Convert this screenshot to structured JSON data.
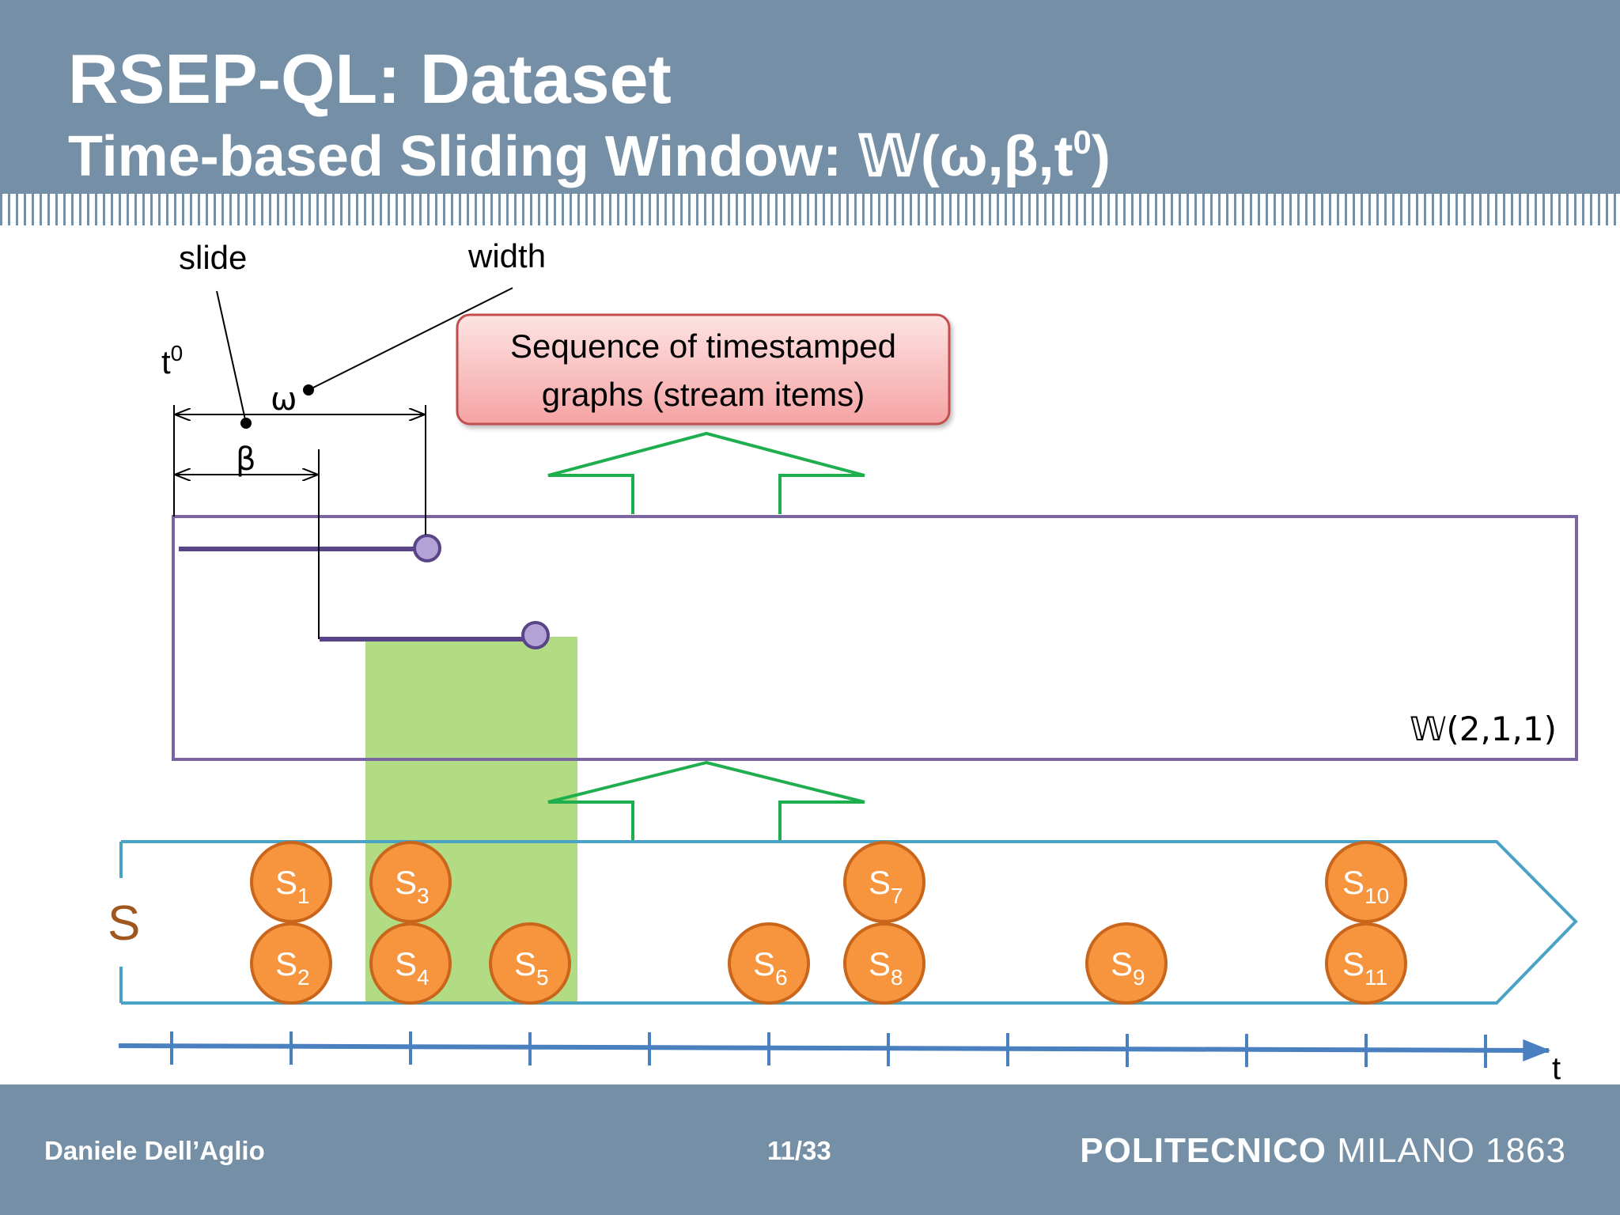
{
  "header": {
    "title": "RSEP-QL: Dataset",
    "subtitle_text": "Time-based Sliding Window:  𝕎(ω,β,t",
    "subtitle_sup": "0",
    "subtitle_close": ")"
  },
  "diagram": {
    "labels": {
      "slide": "slide",
      "width": "width",
      "t0_base": "t",
      "t0_sup": "0",
      "omega": "ω",
      "beta": "β",
      "stream_label": "S",
      "axis_label": "t",
      "window_label": "𝕎(2,1,1)"
    },
    "callout": {
      "line1": "Sequence of timestamped",
      "line2": "graphs (stream items)"
    },
    "stream_items": [
      {
        "base": "S",
        "sub": "1"
      },
      {
        "base": "S",
        "sub": "2"
      },
      {
        "base": "S",
        "sub": "3"
      },
      {
        "base": "S",
        "sub": "4"
      },
      {
        "base": "S",
        "sub": "5"
      },
      {
        "base": "S",
        "sub": "6"
      },
      {
        "base": "S",
        "sub": "7"
      },
      {
        "base": "S",
        "sub": "8"
      },
      {
        "base": "S",
        "sub": "9"
      },
      {
        "base": "S",
        "sub": "10"
      },
      {
        "base": "S",
        "sub": "11"
      }
    ],
    "colors": {
      "header_bg": "#7590a6",
      "window_border": "#7a65a0",
      "stream_border": "#4aa3c4",
      "arrow_green": "#1fae4e",
      "highlight_green": "#b2dc84",
      "item_fill": "#f7953e",
      "item_border": "#c9661b",
      "axis_blue": "#4a7fc0",
      "callout_fill": "#f5a3a3",
      "stream_label_color": "#a0561c",
      "endpoint_fill": "#b3a2d6"
    }
  },
  "footer": {
    "author": "Daniele Dell’Aglio",
    "page": "11/33",
    "logo_bold": "POLITECNICO",
    "logo_rest": " MILANO 1863"
  }
}
